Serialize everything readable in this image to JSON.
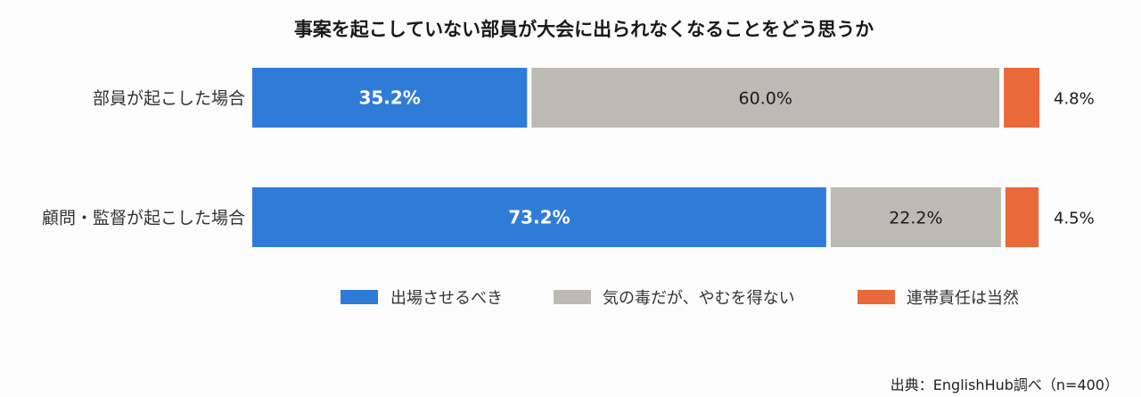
{
  "chart_data": {
    "type": "bar",
    "orientation": "horizontal",
    "stacked": true,
    "normalized_percent": true,
    "title": "事案を起こしていない部員が大会に出られなくなることをどう思うか",
    "categories": [
      "部員が起こした場合",
      "顧問・監督が起こした場合"
    ],
    "series": [
      {
        "name": "出場させるべき",
        "values": [
          35.2,
          73.2
        ],
        "color": "#2f7bd8"
      },
      {
        "name": "気の毒だが、やむを得ない",
        "values": [
          60.0,
          22.2
        ],
        "color": "#bbbab3"
      },
      {
        "name": "連帯責任は当然",
        "values": [
          4.8,
          4.5
        ],
        "color": "#e9693a"
      }
    ],
    "unit": "%",
    "xlim": [
      0,
      100
    ],
    "grid": false,
    "legend": "bottom",
    "source": "出典：EnglishHub調べ（n=400）"
  }
}
